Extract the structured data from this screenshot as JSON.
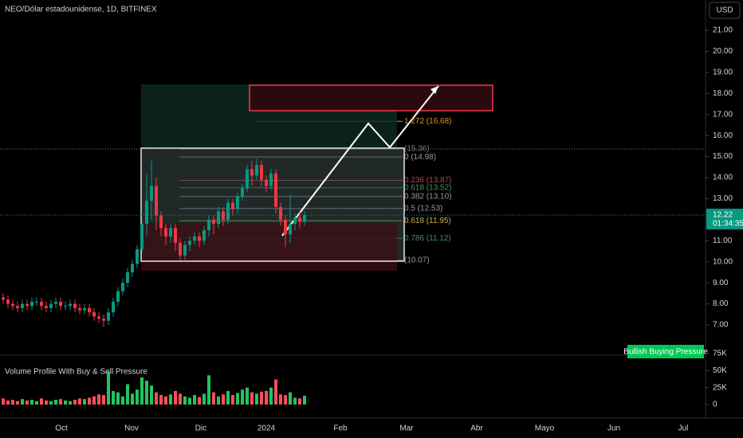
{
  "chart_data": {
    "type": "candlestick",
    "title": "NEO/Dólar estadounidense, 1D, BITFINEX",
    "currency": "USD",
    "x_labels": [
      "Oct",
      "Nov",
      "Dic",
      "2024",
      "Feb",
      "Mar",
      "Abr",
      "Mayo",
      "Jun",
      "Jul"
    ],
    "ylim": [
      5.6,
      22.44
    ],
    "yticks": [
      {
        "value": 7,
        "label": "7.00"
      },
      {
        "value": 8,
        "label": "8.00"
      },
      {
        "value": 9,
        "label": "9.00"
      },
      {
        "value": 10,
        "label": "10.00"
      },
      {
        "value": 11,
        "label": "11.00"
      },
      {
        "value": 12,
        "label": "12.00"
      },
      {
        "value": 13,
        "label": "13.00"
      },
      {
        "value": 14,
        "label": "14.00"
      },
      {
        "value": 15,
        "label": "15.00"
      },
      {
        "value": 16,
        "label": "16.00"
      },
      {
        "value": 17,
        "label": "17.00"
      },
      {
        "value": 18,
        "label": "18.00"
      },
      {
        "value": 19,
        "label": "19.00"
      },
      {
        "value": 20,
        "label": "20.00"
      },
      {
        "value": 21,
        "label": "21.00"
      }
    ],
    "up_color": "#089981",
    "down_color": "#f23645",
    "volume_up_color": "#22c55e",
    "volume_down_color": "#ff4d5e",
    "open": [
      8.3,
      8.2,
      8.0,
      7.9,
      7.8,
      8.0,
      7.9,
      8.1,
      8.1,
      7.9,
      7.8,
      8.0,
      8.1,
      7.9,
      7.9,
      8.0,
      7.8,
      7.7,
      7.8,
      7.6,
      7.4,
      7.3,
      7.2,
      7.6,
      8.1,
      8.6,
      9.0,
      9.5,
      9.9,
      10.6,
      11.8,
      12.9,
      13.6,
      12.2,
      11.6,
      11.2,
      11.6,
      10.9,
      10.3,
      10.8,
      11.0,
      11.2,
      11.0,
      11.5,
      12.0,
      11.8,
      12.4,
      12.0,
      12.8,
      12.5,
      13.1,
      13.5,
      14.4,
      14.1,
      14.6,
      13.9,
      13.6,
      14.2,
      12.6,
      12.0,
      11.3,
      11.8,
      12.1,
      11.9
    ],
    "high": [
      8.5,
      8.4,
      8.2,
      8.1,
      8.2,
      8.2,
      8.3,
      8.3,
      8.3,
      8.1,
      8.2,
      8.3,
      8.3,
      8.1,
      8.2,
      8.2,
      8.0,
      8.0,
      8.0,
      7.8,
      7.6,
      7.5,
      7.8,
      8.3,
      8.8,
      9.2,
      9.7,
      10.1,
      10.8,
      12.0,
      14.2,
      14.8,
      14.0,
      12.4,
      11.8,
      11.8,
      11.8,
      11.1,
      11.0,
      11.2,
      11.4,
      11.4,
      11.7,
      12.2,
      12.2,
      12.6,
      12.6,
      13.0,
      13.0,
      13.3,
      13.7,
      14.6,
      14.8,
      14.9,
      14.8,
      14.1,
      14.4,
      14.4,
      12.8,
      12.2,
      13.2,
      12.3,
      12.4,
      12.4
    ],
    "low": [
      8.0,
      7.8,
      7.7,
      7.6,
      7.6,
      7.7,
      7.7,
      7.9,
      7.7,
      7.6,
      7.6,
      7.8,
      7.7,
      7.7,
      7.7,
      7.6,
      7.5,
      7.5,
      7.4,
      7.2,
      7.1,
      6.9,
      7.0,
      7.4,
      7.9,
      8.4,
      8.8,
      9.3,
      9.7,
      10.4,
      11.2,
      12.0,
      11.5,
      11.2,
      10.8,
      10.9,
      10.5,
      10.07,
      10.1,
      10.5,
      10.8,
      10.7,
      10.8,
      11.2,
      11.3,
      11.6,
      11.7,
      11.8,
      12.2,
      12.3,
      12.9,
      13.3,
      13.6,
      13.9,
      13.6,
      13.3,
      13.4,
      12.3,
      11.7,
      10.7,
      10.9,
      11.5,
      11.6,
      11.7
    ],
    "close": [
      8.2,
      8.0,
      7.9,
      7.8,
      8.0,
      7.9,
      8.1,
      8.1,
      7.9,
      7.8,
      8.0,
      8.1,
      7.9,
      7.9,
      8.0,
      7.8,
      7.7,
      7.8,
      7.6,
      7.4,
      7.3,
      7.2,
      7.6,
      8.1,
      8.6,
      9.0,
      9.5,
      9.9,
      10.6,
      11.8,
      12.9,
      13.6,
      12.2,
      11.6,
      11.2,
      11.6,
      10.9,
      10.3,
      10.8,
      11.0,
      11.2,
      11.0,
      11.5,
      12.0,
      11.8,
      12.4,
      12.0,
      12.8,
      12.5,
      13.1,
      13.5,
      14.4,
      14.1,
      14.6,
      13.9,
      13.6,
      14.2,
      12.6,
      12.0,
      11.3,
      11.8,
      12.1,
      11.9,
      12.22
    ],
    "volume": [
      9000,
      6000,
      7000,
      5000,
      8000,
      6000,
      7000,
      5000,
      9000,
      6000,
      5000,
      7000,
      8000,
      6000,
      5000,
      7000,
      9000,
      8000,
      10000,
      12000,
      15000,
      14000,
      48000,
      20000,
      18000,
      12000,
      30000,
      16000,
      22000,
      40000,
      35000,
      28000,
      18000,
      14000,
      12000,
      15000,
      20000,
      16000,
      12000,
      10000,
      14000,
      11000,
      16000,
      43000,
      18000,
      12000,
      15000,
      20000,
      14000,
      17000,
      22000,
      25000,
      18000,
      16000,
      19000,
      20000,
      25000,
      37000,
      15000,
      14000,
      18000,
      10000,
      9000,
      13000
    ],
    "volume_ylim": [
      0,
      75000
    ],
    "volume_yticks": [
      {
        "value": 0,
        "label": "0"
      },
      {
        "value": 25000,
        "label": "25K"
      },
      {
        "value": 50000,
        "label": "50K"
      },
      {
        "value": 75000,
        "label": "75K"
      }
    ],
    "last_price": 12.22,
    "countdown": "01:34:35",
    "fib_levels": [
      {
        "label": "(15.36)",
        "value": 15.36,
        "color": "#787b86"
      },
      {
        "label": "0 (14.98)",
        "value": 14.98,
        "color": "#9598a1"
      },
      {
        "label": "0.236 (13.87)",
        "value": 13.87,
        "color": "#b2494f"
      },
      {
        "label": "0.618 (13.52)",
        "value": 13.52,
        "color": "#4c8f6e"
      },
      {
        "label": "0.382 (13.10)",
        "value": 13.1,
        "color": "#9598a1"
      },
      {
        "label": "0.5 (12.53)",
        "value": 12.53,
        "color": "#9598a1"
      },
      {
        "label": "0.618 (11.95)",
        "value": 11.95,
        "color": "#c9b44a"
      },
      {
        "label": "0.786 (11.12)",
        "value": 11.12,
        "color": "#4c8f6e"
      },
      {
        "label": "(10.07)",
        "value": 10.07,
        "color": "#9598a1"
      },
      {
        "label": "1.272 (16.68)",
        "value": 16.68,
        "color": "#e0902a"
      }
    ],
    "indicator_title": "Volume Profile With Buy & Sell Pressure",
    "indicator_badge": "Bullish Buying Pressure"
  }
}
